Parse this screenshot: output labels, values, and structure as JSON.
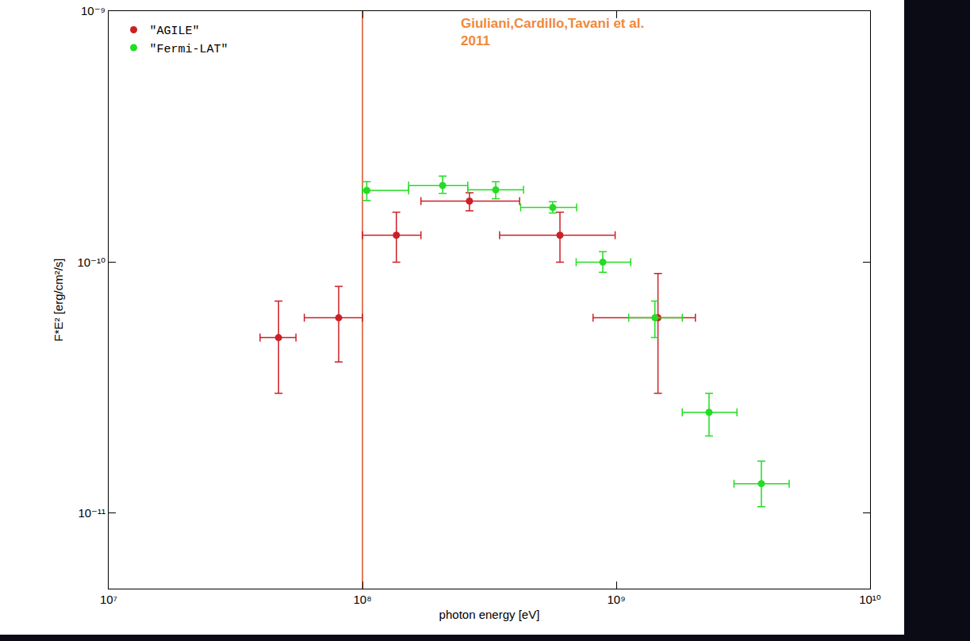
{
  "chart_data": {
    "type": "scatter",
    "log": true,
    "grid": false,
    "legend": "top-left",
    "x_label": "photon energy [eV]",
    "y_label": "F*E² [erg/cm²/s]",
    "annotations": [
      {
        "text": "Giuliani,Cardillo,Tavani et al. 2011",
        "color": "#f0883a"
      }
    ],
    "vline": {
      "x": 100000000,
      "color": "#d9502a"
    },
    "xlim": [
      10000000,
      10000000000
    ],
    "ylim": [
      5e-12,
      1e-09
    ],
    "xticks": [
      {
        "value": 10000000,
        "label": "10⁷"
      },
      {
        "value": 100000000,
        "label": "10⁸"
      },
      {
        "value": 1000000000,
        "label": "10⁹"
      },
      {
        "value": 10000000000,
        "label": "10¹⁰"
      }
    ],
    "yticks": [
      {
        "value": 1e-11,
        "label": "10⁻¹¹"
      },
      {
        "value": 1e-10,
        "label": "10⁻¹⁰"
      },
      {
        "value": 1e-09,
        "label": "10⁻⁹"
      }
    ],
    "series": [
      {
        "name": "\"AGILE\"",
        "color": "#cc1f26",
        "marker": "circle",
        "x": [
          46700000,
          80600000,
          136000000,
          264000000,
          600000000,
          1460000000
        ],
        "values": [
          5e-11,
          6e-11,
          1.28e-10,
          1.75e-10,
          1.28e-10,
          6e-11
        ],
        "x_low": [
          39500000,
          59000000,
          100000000,
          170000000,
          347000000,
          810000000
        ],
        "x_high": [
          54700000,
          100000000,
          170000000,
          416000000,
          990000000,
          2050000000
        ],
        "y_low": [
          3e-11,
          4e-11,
          1e-10,
          1.6e-10,
          1e-10,
          3e-11
        ],
        "y_high": [
          7e-11,
          8e-11,
          1.58e-10,
          1.89e-10,
          1.58e-10,
          9e-11
        ]
      },
      {
        "name": "\"Fermi-LAT\"",
        "color": "#22dd22",
        "marker": "circle",
        "x": [
          104000000,
          207000000,
          335000000,
          562000000,
          885000000,
          1420000000,
          2320000000,
          3730000000
        ],
        "values": [
          1.93e-10,
          2.02e-10,
          1.94e-10,
          1.65e-10,
          1e-10,
          6e-11,
          2.52e-11,
          1.31e-11
        ],
        "x_low": [
          100000000,
          152000000,
          260000000,
          420000000,
          695000000,
          1120000000,
          1820000000,
          2910000000
        ],
        "x_high": [
          152000000,
          260000000,
          431000000,
          698000000,
          1140000000,
          1820000000,
          2990000000,
          4800000000
        ],
        "y_low": [
          1.76e-10,
          1.88e-10,
          1.79e-10,
          1.57e-10,
          9.1e-11,
          5e-11,
          2.03e-11,
          1.06e-11
        ],
        "y_high": [
          2.09e-10,
          2.2e-10,
          2.09e-10,
          1.74e-10,
          1.1e-10,
          7e-11,
          3e-11,
          1.61e-11
        ]
      }
    ]
  }
}
